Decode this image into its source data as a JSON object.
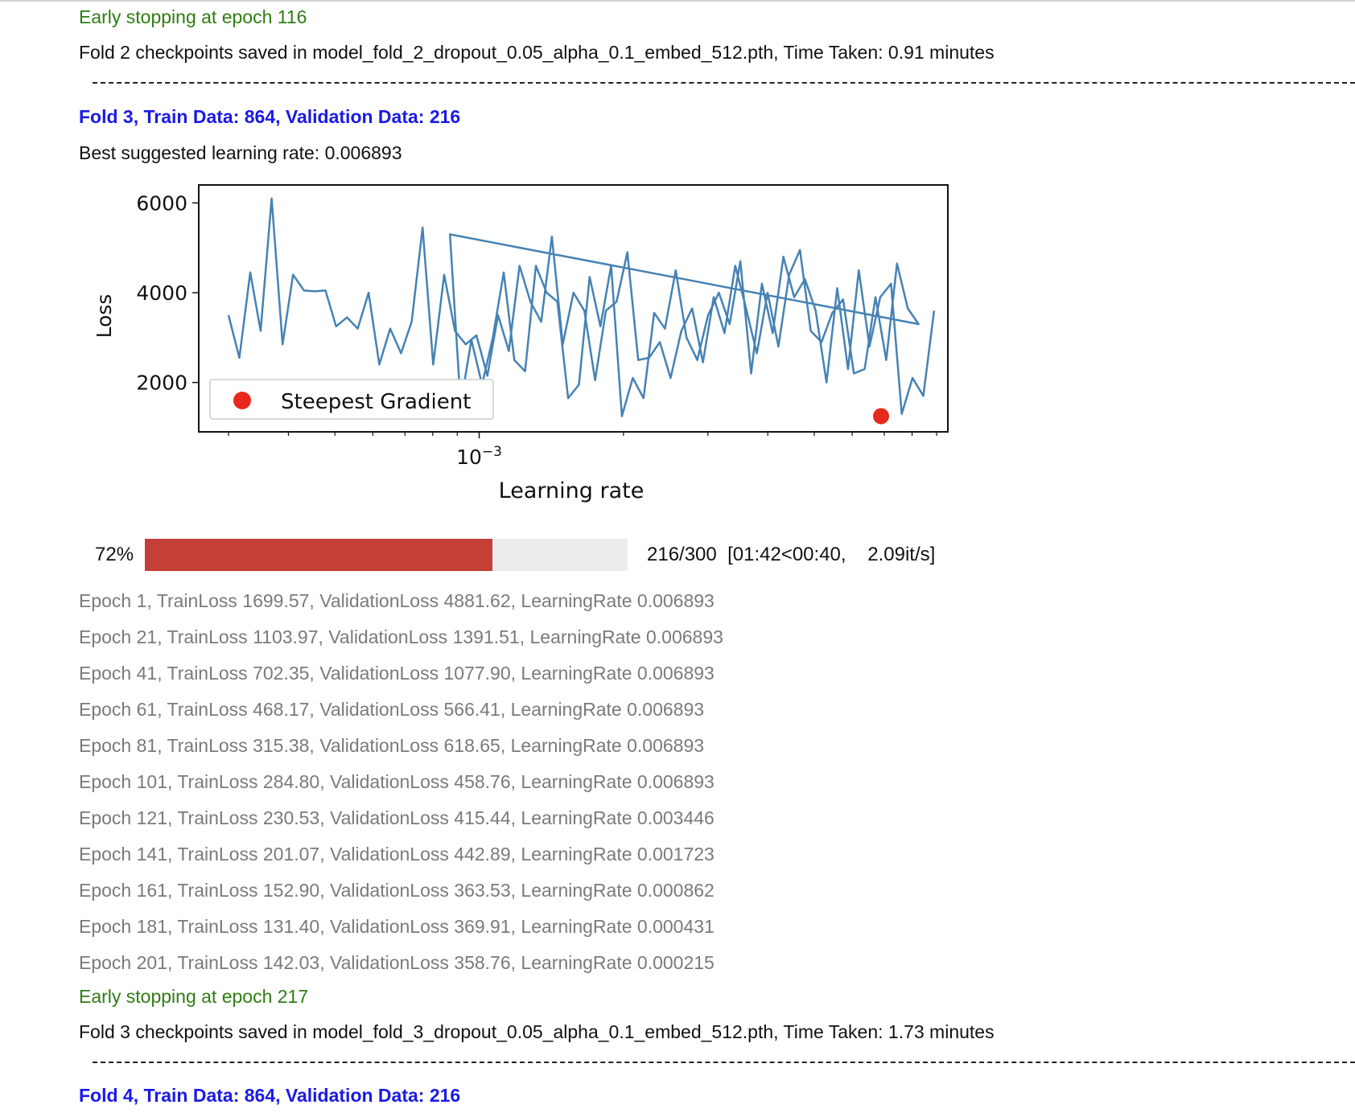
{
  "output": {
    "early_stop_prev": "Early stopping at epoch 116",
    "fold2_saved": "Fold 2 checkpoints saved in model_fold_2_dropout_0.05_alpha_0.1_embed_512.pth, Time Taken: 0.91 minutes",
    "fold3_header": "Fold 3, Train Data: 864, Validation Data: 216",
    "best_lr": "Best suggested learning rate: 0.006893",
    "progress": {
      "percent_label": "72%",
      "fraction": 0.72,
      "stats": "216/300  [01:42<00:40,    2.09it/s]"
    },
    "epochs": [
      "Epoch 1, TrainLoss 1699.57, ValidationLoss 4881.62, LearningRate 0.006893",
      "Epoch 21, TrainLoss 1103.97, ValidationLoss 1391.51, LearningRate 0.006893",
      "Epoch 41, TrainLoss 702.35, ValidationLoss 1077.90, LearningRate 0.006893",
      "Epoch 61, TrainLoss 468.17, ValidationLoss 566.41, LearningRate 0.006893",
      "Epoch 81, TrainLoss 315.38, ValidationLoss 618.65, LearningRate 0.006893",
      "Epoch 101, TrainLoss 284.80, ValidationLoss 458.76, LearningRate 0.006893",
      "Epoch 121, TrainLoss 230.53, ValidationLoss 415.44, LearningRate 0.003446",
      "Epoch 141, TrainLoss 201.07, ValidationLoss 442.89, LearningRate 0.001723",
      "Epoch 161, TrainLoss 152.90, ValidationLoss 363.53, LearningRate 0.000862",
      "Epoch 181, TrainLoss 131.40, ValidationLoss 369.91, LearningRate 0.000431",
      "Epoch 201, TrainLoss 142.03, ValidationLoss 358.76, LearningRate 0.000215"
    ],
    "early_stop": "Early stopping at epoch 217",
    "fold3_saved": "Fold 3 checkpoints saved in model_fold_3_dropout_0.05_alpha_0.1_embed_512.pth, Time Taken: 1.73 minutes",
    "fold4_header": "Fold 4, Train Data: 864, Validation Data: 216"
  },
  "colors": {
    "line": "#4682b4",
    "marker": "#e8281c",
    "progress_fill": "#c43f37",
    "progress_track": "#ececec"
  },
  "chart_data": {
    "type": "line",
    "xlabel": "Learning rate",
    "ylabel": "Loss",
    "x_scale": "log",
    "x_tick_labels": [
      "10^-3"
    ],
    "xlim": [
      0.00026,
      0.0095
    ],
    "y_ticks": [
      2000,
      4000,
      6000
    ],
    "ylim": [
      900,
      6400
    ],
    "legend": {
      "entries": [
        "Steepest Gradient"
      ],
      "placement": "lower left"
    },
    "series": [
      {
        "x": [
          0.0003,
          0.000316,
          0.000333,
          0.00035,
          0.000369,
          0.000389,
          0.000409,
          0.000431,
          0.000454,
          0.000478,
          0.000503,
          0.00053,
          0.000558,
          0.000588,
          0.000619,
          0.000652,
          0.000687,
          0.000723,
          0.000762,
          0.000802,
          0.000845,
          0.00089,
          0.000937,
          0.000987,
          0.00104,
          0.001095,
          0.001153,
          0.001214,
          0.001279,
          0.001347,
          0.001418,
          0.001494,
          0.001573,
          0.001657,
          0.001745,
          0.001838,
          0.001935,
          0.002038,
          0.002147,
          0.002261,
          0.002381,
          0.002508,
          0.002641,
          0.002781,
          0.002929,
          0.003085,
          0.003249,
          0.003422,
          0.003604,
          0.003795,
          0.003997,
          0.00421,
          0.004433,
          0.004669,
          0.004917,
          0.005179,
          0.005454,
          0.005744,
          0.006049,
          0.006371,
          0.00671,
          0.007066,
          0.007442,
          0.007838,
          0.008254
        ],
        "y": [
          3500,
          2550,
          4450,
          3150,
          6100,
          2850,
          4400,
          4050,
          4030,
          4050,
          3250,
          3450,
          3200,
          4000,
          2400,
          3200,
          2650,
          3350,
          5450,
          2400,
          4400,
          3150,
          2850,
          3050,
          2150,
          3500,
          2700,
          4600,
          3800,
          3350,
          5250,
          2850,
          4000,
          3600,
          2050,
          3600,
          3800,
          4900,
          2500,
          2550,
          2900,
          2100,
          3150,
          3650,
          2450,
          3900,
          3100,
          4600,
          3650,
          2650,
          4000,
          2800,
          4400,
          4950,
          3150,
          2900,
          3550,
          3850,
          2200,
          2300,
          3900,
          2500,
          4650,
          3650,
          3300
        ]
      },
      {
        "x": [
          0.000869,
          0.000915,
          0.000963,
          0.001014,
          0.001068,
          0.001125,
          0.001184,
          0.001247,
          0.001313,
          0.001383,
          0.001456,
          0.001533,
          0.001615,
          0.0017,
          0.00179,
          0.001885,
          0.001985,
          0.002091,
          0.002202,
          0.002318,
          0.002441,
          0.002571,
          0.002707,
          0.002851,
          0.003003,
          0.003162,
          0.00333,
          0.003506,
          0.003692,
          0.003888,
          0.004095,
          0.004312,
          0.004541,
          0.004782,
          0.005035,
          0.005303,
          0.005584,
          0.00588,
          0.006192,
          0.00652,
          0.006866,
          0.00723,
          0.007614,
          0.008018,
          0.008443,
          0.008891
        ],
        "y": [
          5300,
          1500,
          2950,
          1950,
          3000,
          4450,
          2500,
          2250,
          4600,
          4000,
          3800,
          1650,
          1950,
          4350,
          3250,
          4600,
          1250,
          2100,
          1650,
          3550,
          3200,
          4500,
          3000,
          2500,
          3500,
          4000,
          3300,
          4700,
          2200,
          4200,
          3100,
          4800,
          3900,
          4300,
          3600,
          2000,
          4100,
          2300,
          4500,
          2800,
          3900,
          4200,
          1300,
          2100,
          1700,
          3600
        ]
      }
    ],
    "points": [
      {
        "name": "Steepest Gradient",
        "x": 0.006893,
        "y": 1250
      }
    ]
  }
}
